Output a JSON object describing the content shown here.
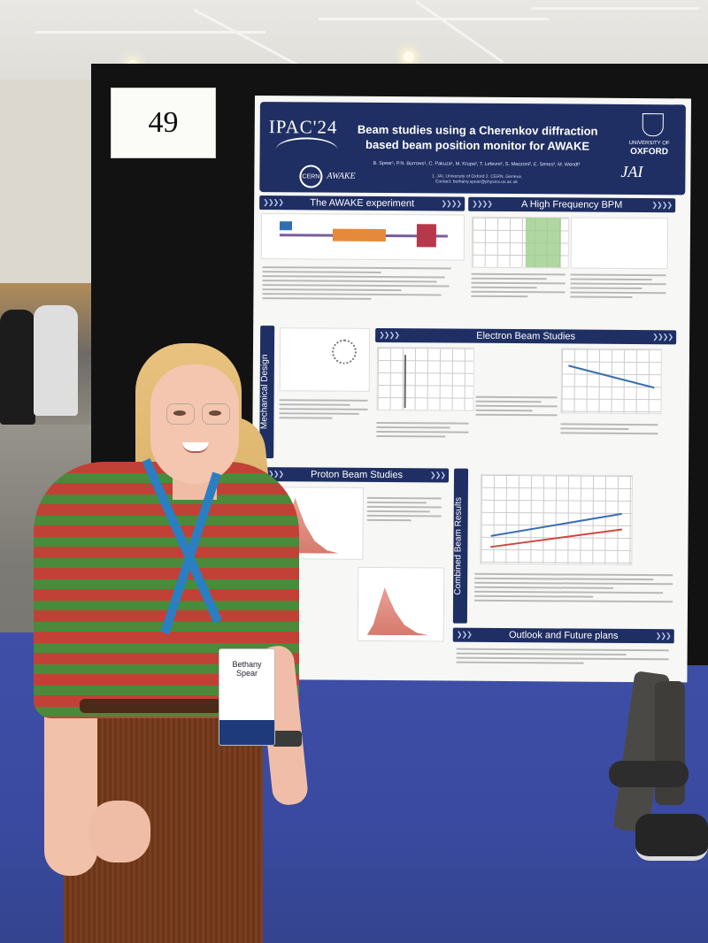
{
  "board": {
    "number": "49"
  },
  "poster": {
    "conference_logo": "IPAC'24",
    "title": "Beam studies using a Cherenkov diffraction based beam position monitor for AWAKE",
    "authors": "B. Spear¹, P.N. Burrows¹, C. Pakuza¹, M. Krupa², T. Lefevre², S. Mazzoni², E. Senes², M. Wendt²",
    "affiliation": "1. JAI, University of Oxford 2. CERN, Geneva",
    "contact": "Contact: bethany.spear@physics.ox.ac.uk",
    "cern_logo": "CERN",
    "awake_logo": "AWAKE",
    "university_logo_line1": "UNIVERSITY OF",
    "university_logo_line2": "OXFORD",
    "jai_logo": "JAI",
    "sections": {
      "awake": "The AWAKE experiment",
      "hf_bpm": "A High Frequency BPM",
      "mechanical": "Mechanical Design",
      "electron": "Electron Beam Studies",
      "proton": "Proton Beam Studies",
      "combined": "Combined Beam Results",
      "outlook": "Outlook and Future plans"
    }
  },
  "badge": {
    "name_line1": "Bethany",
    "name_line2": "Spear"
  },
  "colors": {
    "poster_navy": "#1f2f63",
    "board_black": "#121212",
    "carpet_blue": "#3a4aa0",
    "shirt_red": "#c24136",
    "shirt_green": "#4a8a3a",
    "lanyard_blue": "#2a7fc2"
  }
}
